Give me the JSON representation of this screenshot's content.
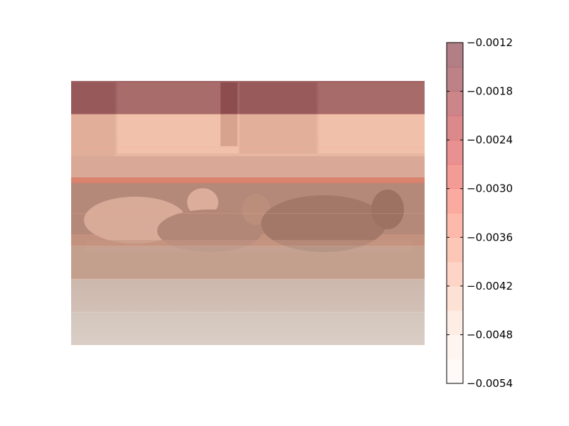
{
  "chart_data": {
    "type": "heatmap",
    "title": "",
    "xlabel": "",
    "ylabel": "",
    "colormap": "Reds",
    "alpha": 0.5,
    "background_photo": "cows-lying-on-street",
    "bands": [
      {
        "value": -0.0013
      },
      {
        "value": -0.004
      },
      {
        "value": -0.004
      },
      {
        "value": -0.004
      },
      {
        "value": -0.004
      },
      {
        "value": -0.0044
      },
      {
        "value": -0.005
      },
      {
        "value": -0.0052
      }
    ],
    "colorbar": {
      "vmin": -0.0054,
      "vmax": -0.0012,
      "levels": [
        -0.0054,
        -0.0051,
        -0.0048,
        -0.0045,
        -0.0042,
        -0.0039,
        -0.0036,
        -0.0033,
        -0.003,
        -0.0027,
        -0.0024,
        -0.0021,
        -0.0018,
        -0.0015,
        -0.0012
      ],
      "ticks": [
        -0.0012,
        -0.0018,
        -0.0024,
        -0.003,
        -0.0036,
        -0.0042,
        -0.0048,
        -0.0054
      ],
      "tick_labels": [
        "−0.0012",
        "−0.0018",
        "−0.0024",
        "−0.0030",
        "−0.0036",
        "−0.0042",
        "−0.0048",
        "−0.0054"
      ],
      "colors": [
        "#fff5f0",
        "#fee9e1",
        "#fedbcc",
        "#fcc3ab",
        "#fcaa8d",
        "#fc8f6f",
        "#fb7555",
        "#f6553d",
        "#e63a2c",
        "#d42121",
        "#b91419",
        "#990c13",
        "#7a0510",
        "#67000d"
      ]
    }
  }
}
